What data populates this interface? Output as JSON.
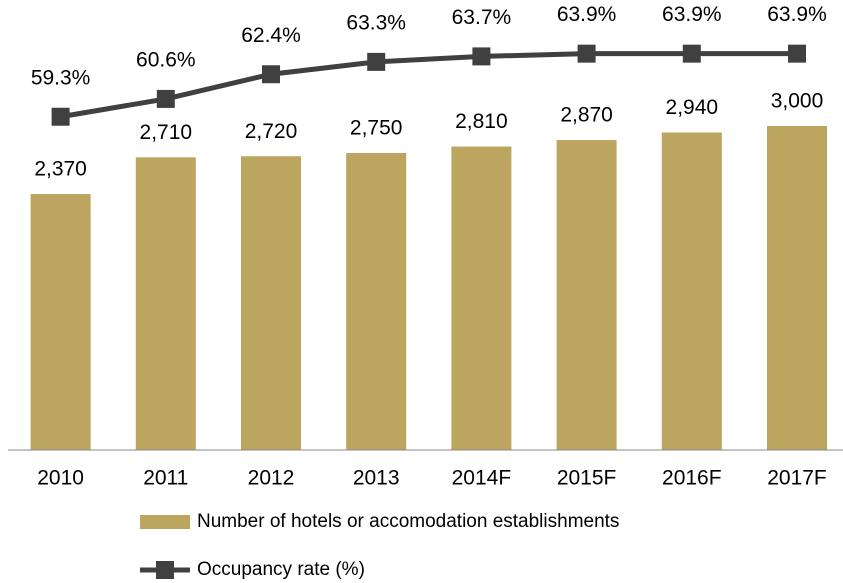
{
  "chart_data": {
    "type": "bar",
    "categories": [
      "2010",
      "2011",
      "2012",
      "2013",
      "2014F",
      "2015F",
      "2016F",
      "2017F"
    ],
    "ylim": [
      0,
      4000
    ],
    "y2lim": [
      35,
      66.5
    ],
    "legend": "bottom",
    "series": [
      {
        "name": "Number of hotels or accomodation establishments",
        "type": "bar",
        "color": "#bba55f",
        "values": [
          2370,
          2710,
          2720,
          2750,
          2810,
          2870,
          2940,
          3000
        ],
        "value_labels": [
          "2,370",
          "2,710",
          "2,720",
          "2,750",
          "2,810",
          "2,870",
          "2,940",
          "3,000"
        ]
      },
      {
        "name": "Occupancy rate (%)",
        "type": "line",
        "axis": "y2",
        "color": "#404040",
        "values": [
          59.3,
          60.6,
          62.4,
          63.3,
          63.7,
          63.9,
          63.9,
          63.9
        ],
        "value_labels": [
          "59.3%",
          "60.6%",
          "62.4%",
          "63.3%",
          "63.7%",
          "63.9%",
          "63.9%",
          "63.9%"
        ]
      }
    ]
  }
}
